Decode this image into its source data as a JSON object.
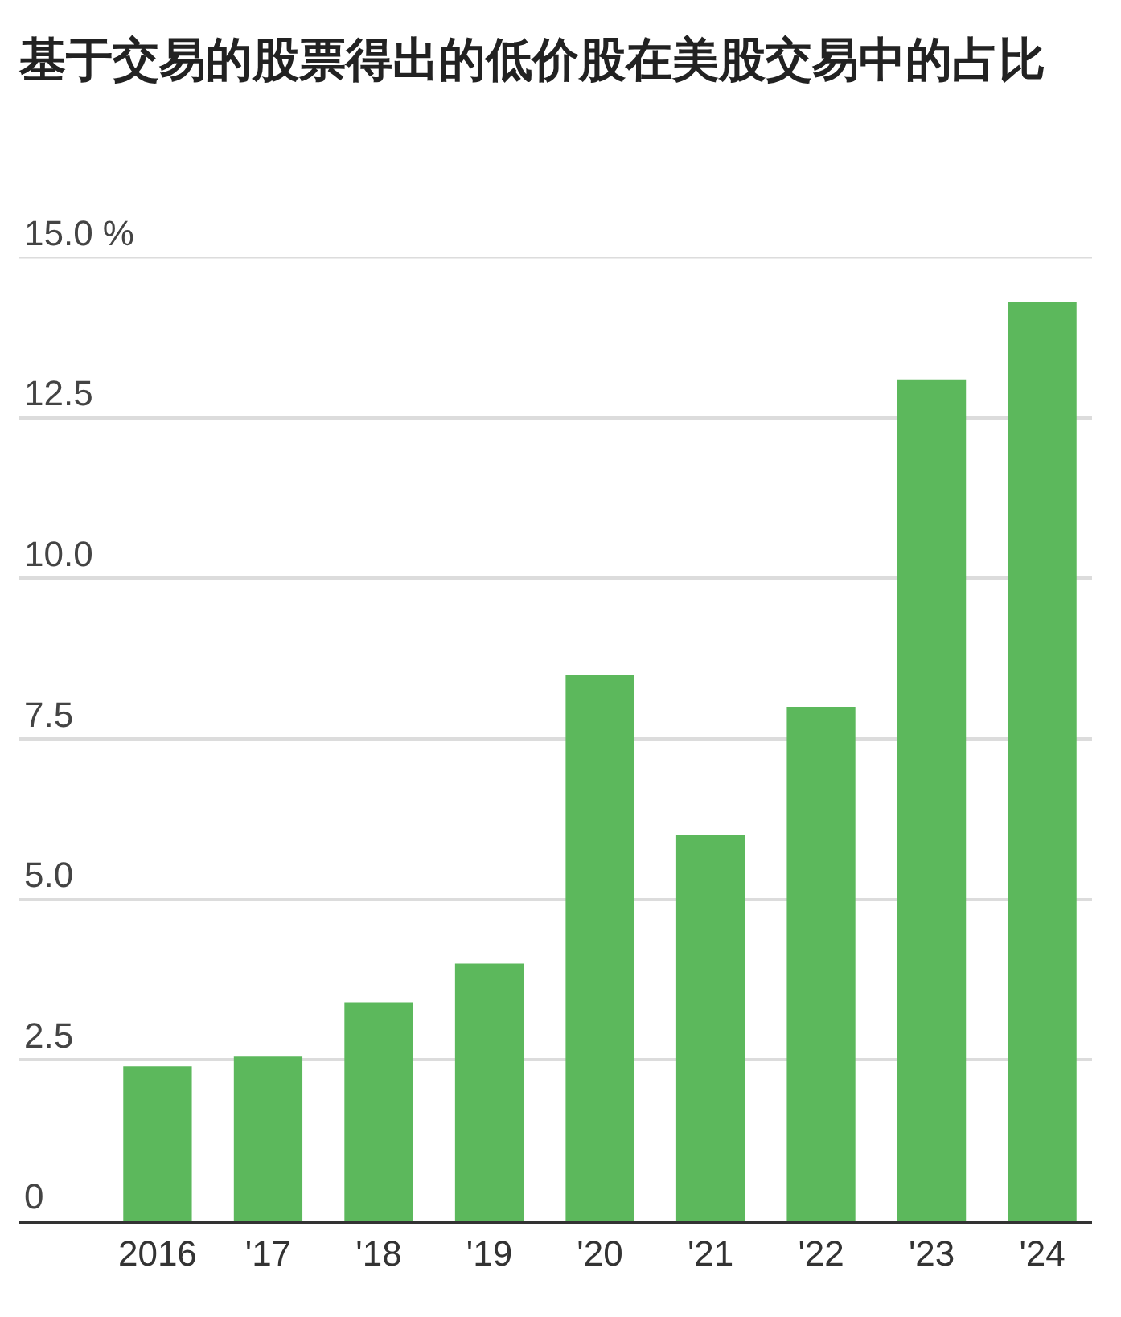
{
  "chart_data": {
    "type": "bar",
    "title": "基于交易的股票得出的低价股在美股交易中的占比",
    "categories": [
      "2016",
      "'17",
      "'18",
      "'19",
      "'20",
      "'21",
      "'22",
      "'23",
      "'24"
    ],
    "values": [
      2.4,
      2.55,
      3.4,
      4.0,
      8.5,
      6.0,
      8.0,
      13.1,
      14.3
    ],
    "color": "#5cb85c",
    "ylim": [
      0,
      15
    ],
    "yticks": [
      0,
      2.5,
      {
        "value": 5,
        "label": "5.0"
      },
      7.5,
      {
        "value": 10,
        "label": "10.0"
      },
      12.5,
      {
        "value": 15,
        "label": "15.0 %"
      }
    ],
    "grid": "y"
  }
}
